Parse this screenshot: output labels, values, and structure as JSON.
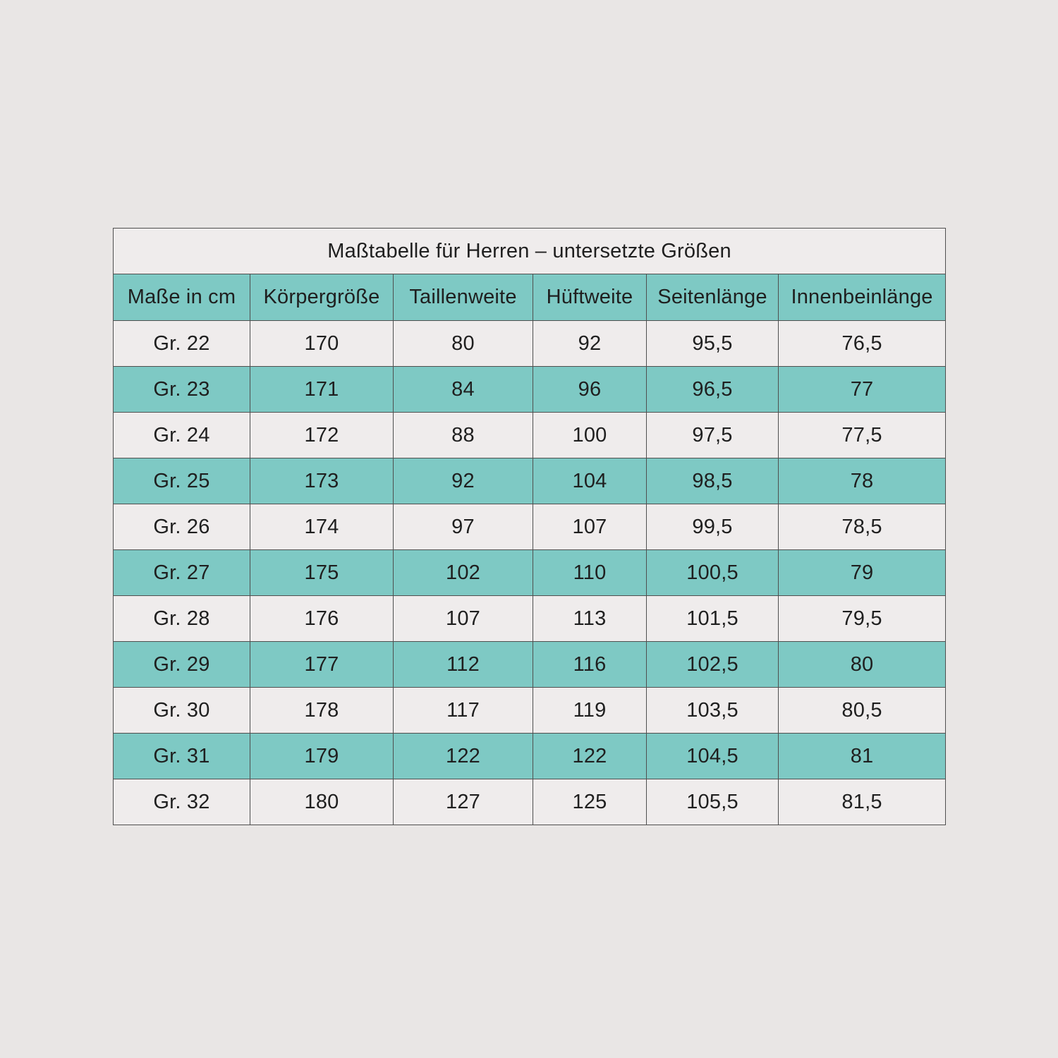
{
  "page": {
    "background_color": "#e9e6e5"
  },
  "table": {
    "title": "Maßtabelle für Herren – untersetzte Größen",
    "columns": [
      "Maße in cm",
      "Körpergröße",
      "Taillenweite",
      "Hüftweite",
      "Seitenlänge",
      "Innenbeinlänge"
    ],
    "rows": [
      {
        "size": "Gr. 22",
        "values": [
          "170",
          "80",
          "92",
          "95,5",
          "76,5"
        ]
      },
      {
        "size": "Gr. 23",
        "values": [
          "171",
          "84",
          "96",
          "96,5",
          "77"
        ]
      },
      {
        "size": "Gr. 24",
        "values": [
          "172",
          "88",
          "100",
          "97,5",
          "77,5"
        ]
      },
      {
        "size": "Gr. 25",
        "values": [
          "173",
          "92",
          "104",
          "98,5",
          "78"
        ]
      },
      {
        "size": "Gr. 26",
        "values": [
          "174",
          "97",
          "107",
          "99,5",
          "78,5"
        ]
      },
      {
        "size": "Gr. 27",
        "values": [
          "175",
          "102",
          "110",
          "100,5",
          "79"
        ]
      },
      {
        "size": "Gr. 28",
        "values": [
          "176",
          "107",
          "113",
          "101,5",
          "79,5"
        ]
      },
      {
        "size": "Gr. 29",
        "values": [
          "177",
          "112",
          "116",
          "102,5",
          "80"
        ]
      },
      {
        "size": "Gr. 30",
        "values": [
          "178",
          "117",
          "119",
          "103,5",
          "80,5"
        ]
      },
      {
        "size": "Gr. 31",
        "values": [
          "179",
          "122",
          "122",
          "104,5",
          "81"
        ]
      },
      {
        "size": "Gr. 32",
        "values": [
          "180",
          "127",
          "125",
          "105,5",
          "81,5"
        ]
      }
    ],
    "colors": {
      "teal_row": "#7ec9c4",
      "light_row": "#efecec",
      "title_background": "#efecec",
      "border": "#4f4f4f",
      "text": "#1f1f1f"
    }
  },
  "chart_data": {
    "type": "table",
    "title": "Maßtabelle für Herren – untersetzte Größen",
    "columns": [
      "Maße in cm",
      "Körpergröße",
      "Taillenweite",
      "Hüftweite",
      "Seitenlänge",
      "Innenbeinlänge"
    ],
    "rows": [
      [
        "Gr. 22",
        "170",
        "80",
        "92",
        "95,5",
        "76,5"
      ],
      [
        "Gr. 23",
        "171",
        "84",
        "96",
        "96,5",
        "77"
      ],
      [
        "Gr. 24",
        "172",
        "88",
        "100",
        "97,5",
        "77,5"
      ],
      [
        "Gr. 25",
        "173",
        "92",
        "104",
        "98,5",
        "78"
      ],
      [
        "Gr. 26",
        "174",
        "97",
        "107",
        "99,5",
        "78,5"
      ],
      [
        "Gr. 27",
        "175",
        "102",
        "110",
        "100,5",
        "79"
      ],
      [
        "Gr. 28",
        "176",
        "107",
        "113",
        "101,5",
        "79,5"
      ],
      [
        "Gr. 29",
        "177",
        "112",
        "116",
        "102,5",
        "80"
      ],
      [
        "Gr. 30",
        "178",
        "117",
        "119",
        "103,5",
        "80,5"
      ],
      [
        "Gr. 31",
        "179",
        "122",
        "122",
        "104,5",
        "81"
      ],
      [
        "Gr. 32",
        "180",
        "127",
        "125",
        "105,5",
        "81,5"
      ]
    ],
    "layout": {
      "row_striping": "alternating light/teal starting light at Gr. 22",
      "header_background": "teal",
      "all_cells_centered": true,
      "units": "cm"
    }
  }
}
